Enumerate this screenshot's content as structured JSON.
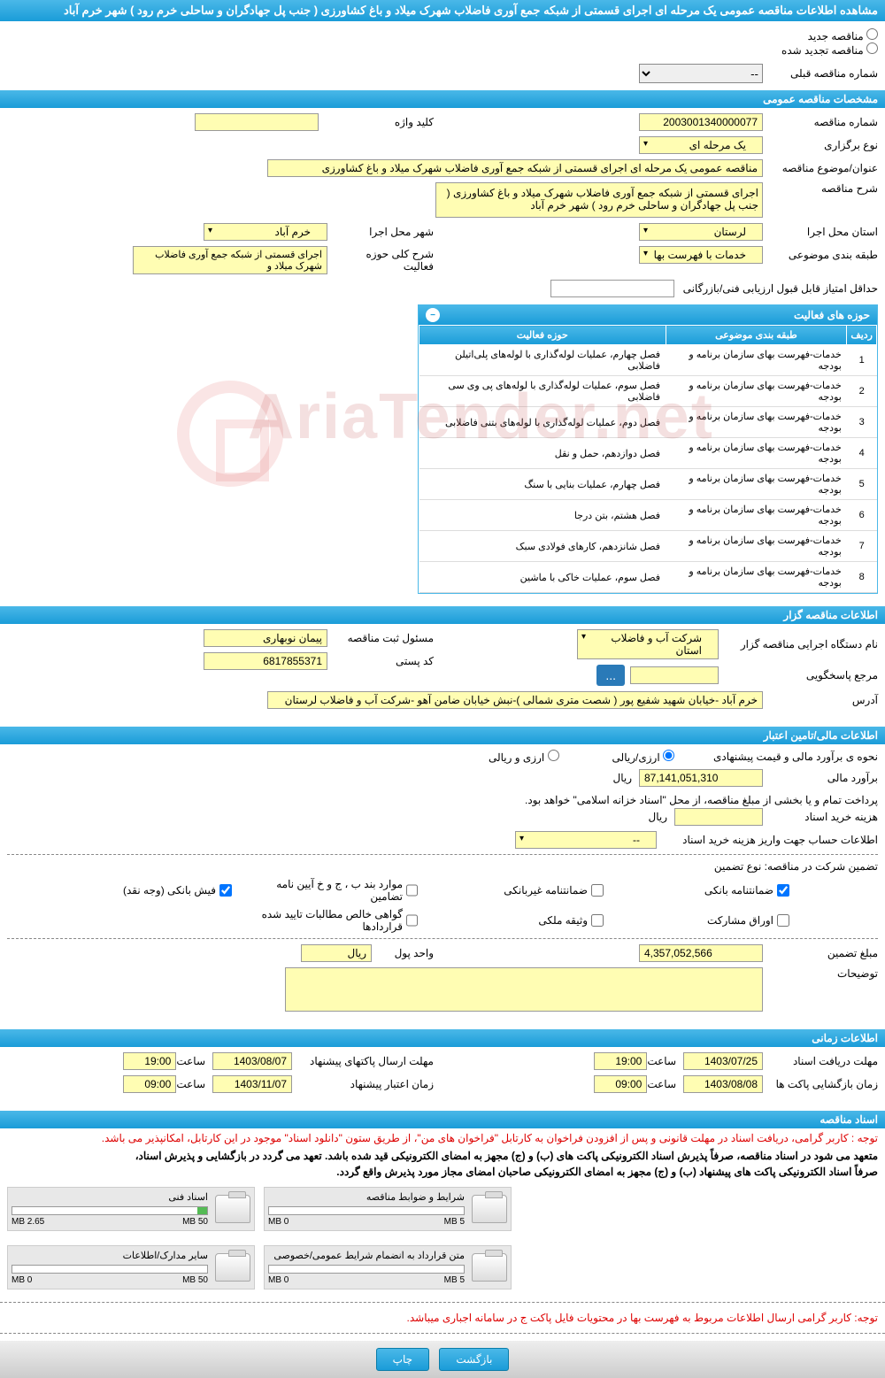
{
  "header_title": "مشاهده اطلاعات مناقصه عمومی یک مرحله ای اجرای قسمتی از شبکه جمع آوری فاضلاب شهرک میلاد و باغ کشاورزی ( جنب پل جهادگران و ساحلی خرم رود ) شهر خرم آباد",
  "radios": {
    "new": "مناقصه جدید",
    "renewed": "مناقصه تجدید شده"
  },
  "prev_tender_label": "شماره مناقصه قبلی",
  "prev_tender_value": "--",
  "sections": {
    "general": "مشخصات مناقصه عمومی",
    "organizer": "اطلاعات مناقصه گزار",
    "financial": "اطلاعات مالی/تامین اعتبار",
    "timing": "اطلاعات زمانی",
    "docs": "اسناد مناقصه"
  },
  "general": {
    "tender_no_label": "شماره مناقصه",
    "tender_no": "2003001340000077",
    "keyword_label": "کلید واژه",
    "keyword": "",
    "type_label": "نوع برگزاری",
    "type": "یک مرحله ای",
    "subject_label": "عنوان/موضوع مناقصه",
    "subject": "مناقصه عمومی یک مرحله ای اجرای قسمتی از شبکه جمع آوری فاضلاب شهرک میلاد و باغ کشاورزی",
    "desc_label": "شرح مناقصه",
    "desc": "اجرای قسمتی از شبکه جمع آوری فاضلاب شهرک میلاد و باغ کشاورزی ( جنب پل جهادگران و ساحلی خرم رود ) شهر خرم آباد",
    "exec_province_label": "استان محل اجرا",
    "exec_province": "لرستان",
    "exec_city_label": "شهر محل اجرا",
    "exec_city": "خرم آباد",
    "class_label": "طبقه بندی موضوعی",
    "class": "خدمات با فهرست بها",
    "scope_label": "شرح کلی حوزه فعالیت",
    "scope": "اجرای قسمتی از شبکه جمع آوری فاضلاب شهرک میلاد و",
    "min_score_label": "حداقل امتیاز قابل قبول ارزیابی فنی/بازرگانی"
  },
  "activity": {
    "title": "حوزه های فعالیت",
    "col_row": "ردیف",
    "col_class": "طبقه بندی موضوعی",
    "col_scope": "حوزه فعالیت",
    "rows": [
      {
        "n": "1",
        "c": "خدمات-فهرست بهای سازمان برنامه و بودجه",
        "s": "فصل چهارم، عملیات لوله‌گذاری با لوله‌های پلی‌اتیلن فاضلابی"
      },
      {
        "n": "2",
        "c": "خدمات-فهرست بهای سازمان برنامه و بودجه",
        "s": "فصل سوم، عملیات لوله‌گذاری با لوله‌های پی وی سی فاضلابی"
      },
      {
        "n": "3",
        "c": "خدمات-فهرست بهای سازمان برنامه و بودجه",
        "s": "فصل دوم، عملیات لوله‌گذاری با لوله‌های بتنی فاضلابی"
      },
      {
        "n": "4",
        "c": "خدمات-فهرست بهای سازمان برنامه و بودجه",
        "s": "فصل دوازدهم، حمل و نقل"
      },
      {
        "n": "5",
        "c": "خدمات-فهرست بهای سازمان برنامه و بودجه",
        "s": "فصل چهارم، عملیات بنایی با سنگ"
      },
      {
        "n": "6",
        "c": "خدمات-فهرست بهای سازمان برنامه و بودجه",
        "s": "فصل هشتم، بتن درجا"
      },
      {
        "n": "7",
        "c": "خدمات-فهرست بهای سازمان برنامه و بودجه",
        "s": "فصل شانزدهم، کارهای فولادی سبک"
      },
      {
        "n": "8",
        "c": "خدمات-فهرست بهای سازمان برنامه و بودجه",
        "s": "فصل سوم، عملیات خاکی با ماشین"
      }
    ]
  },
  "organizer": {
    "dept_label": "نام دستگاه اجرایی مناقصه گزار",
    "dept": "شرکت آب و فاضلاب استان",
    "resp_label": "مسئول ثبت مناقصه",
    "resp": "پیمان نوبهاری",
    "ref_label": "مرجع پاسخگویی",
    "ref": "",
    "more": "...",
    "zip_label": "کد پستی",
    "zip": "6817855371",
    "addr_label": "آدرس",
    "addr": "خرم آباد -خیابان شهید شفیع پور ( شصت متری شمالی )-نبش خیابان ضامن آهو -شرکت آب و فاضلاب لرستان"
  },
  "financial": {
    "method_label": "نحوه ی برآورد مالی و قیمت پیشنهادی",
    "opt_rial": "ارزی/ریالی",
    "opt_forex": "ارزی و ریالی",
    "estimate_label": "برآورد مالی",
    "estimate": "87,141,051,310",
    "currency": "ریال",
    "payment_note": "پرداخت تمام و یا بخشی از مبلغ مناقصه، از محل \"اسناد خزانه اسلامی\" خواهد بود.",
    "buy_cost_label": "هزینه خرید اسناد",
    "deposit_info_label": "اطلاعات حساب جهت واریز هزینه خرید اسناد",
    "deposit_info": "--",
    "guarantee_label": "تضمین شرکت در مناقصه:   نوع تضمین",
    "checks": {
      "bank_guarantee": "ضمانتنامه بانکی",
      "nonbank_guarantee": "ضمانتنامه غیربانکی",
      "letter_items": "موارد بند ب ، ج و خ آیین نامه تضامین",
      "bank_receipt": "فیش بانکی (وجه نقد)",
      "bonds": "اوراق مشارکت",
      "property": "وثیقه ملکی",
      "certificate": "گواهی خالص مطالبات تایید شده قراردادها"
    },
    "amount_label": "مبلغ تضمین",
    "amount": "4,357,052,566",
    "unit_label": "واحد پول",
    "unit": "ریال",
    "remarks_label": "توضیحات"
  },
  "timing": {
    "receive_label": "مهلت دریافت اسناد",
    "receive_date": "1403/07/25",
    "receive_time_label": "ساعت",
    "receive_time": "19:00",
    "send_label": "مهلت ارسال پاکتهای پیشنهاد",
    "send_date": "1403/08/07",
    "send_time": "19:00",
    "open_label": "زمان بازگشایی پاکت ها",
    "open_date": "1403/08/08",
    "open_time": "09:00",
    "validity_label": "زمان اعتبار پیشنهاد",
    "validity_date": "1403/11/07",
    "validity_time": "09:00"
  },
  "docs": {
    "note1": "توجه : کاربر گرامی، دریافت اسناد در مهلت قانونی و پس از افزودن فراخوان به کارتابل \"فراخوان های من\"، از طریق ستون \"دانلود اسناد\" موجود در این کارتابل، امکانپذیر می باشد.",
    "note2a": "متعهد می شود در اسناد مناقصه، صرفاً پذیرش اسناد الکترونیکی پاکت های (ب) و (ج) مجهز به امضای الکترونیکی قید شده باشد. تعهد می گردد در بازگشایی و پذیرش اسناد،",
    "note2b": "صرفاً اسناد الکترونیکی پاکت های پیشنهاد (ب) و (ج) مجهز به امضای الکترونیکی صاحبان امضای مجاز مورد پذیرش واقع گردد.",
    "files": [
      {
        "title": "شرایط و ضوابط مناقصه",
        "used": "0 MB",
        "total": "5 MB",
        "pct": 0
      },
      {
        "title": "اسناد فنی",
        "used": "2.65 MB",
        "total": "50 MB",
        "pct": 5
      },
      {
        "title": "متن قرارداد به انضمام شرایط عمومی/خصوصی",
        "used": "0 MB",
        "total": "5 MB",
        "pct": 0
      },
      {
        "title": "سایر مدارک/اطلاعات",
        "used": "0 MB",
        "total": "50 MB",
        "pct": 0
      }
    ],
    "note3": "توجه: کاربر گرامی ارسال اطلاعات مربوط به فهرست بها در محتویات فایل پاکت ج در سامانه اجباری میباشد."
  },
  "buttons": {
    "back": "بازگشت",
    "print": "چاپ"
  },
  "watermark": "AriaTender.net"
}
